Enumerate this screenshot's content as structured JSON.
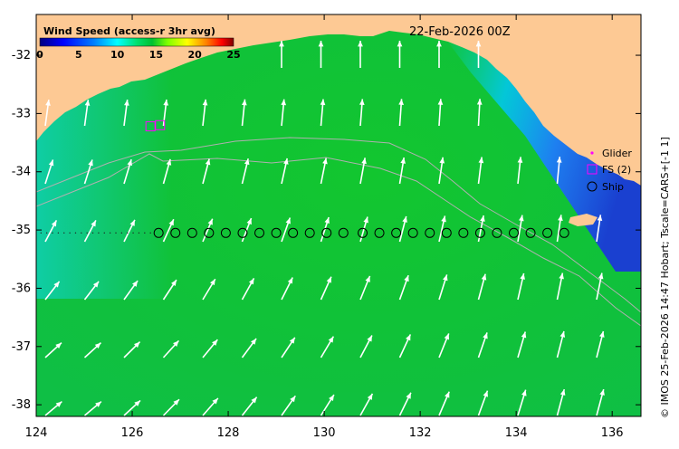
{
  "map": {
    "date_label": "22-Feb-2026 00Z",
    "credit": "© IMOS 25-Feb-2026 14:47 Hobart; Tscale=CARS+[-1 1]",
    "lon_range": [
      124,
      136.6
    ],
    "lat_range": [
      -38.2,
      -31.3
    ],
    "x_ticks": [
      124,
      126,
      128,
      130,
      132,
      134,
      136
    ],
    "y_ticks": [
      -32,
      -33,
      -34,
      -35,
      -36,
      -37,
      -38
    ],
    "colorbar": {
      "title": "Wind Speed (access-r 3hr avg)",
      "min": 0,
      "max": 25,
      "ticks": [
        "0",
        "5",
        "10",
        "15",
        "20",
        "25"
      ],
      "colors": [
        "#000080",
        "#0000ff",
        "#0080ff",
        "#00ffff",
        "#00ff80",
        "#00cc33",
        "#80ff00",
        "#ffff00",
        "#ff8000",
        "#ff0000",
        "#800000"
      ]
    },
    "legend": [
      {
        "label": "Glider",
        "symbol": "dot",
        "color": "#ff00ff"
      },
      {
        "label": "FS (2)",
        "symbol": "square",
        "color": "#ff00ff"
      },
      {
        "label": "Ship",
        "symbol": "circle",
        "color": "#000000"
      }
    ],
    "land_color": "#fdc994",
    "ship_track": {
      "lat": -35.05,
      "lons": [
        126.55,
        126.9,
        127.25,
        127.6,
        127.95,
        128.3,
        128.65,
        129.0,
        129.35,
        129.7,
        130.05,
        130.4,
        130.8,
        131.15,
        131.5,
        131.85,
        132.2,
        132.55,
        132.9,
        133.25,
        133.6,
        133.95,
        134.3,
        134.65,
        135.0
      ]
    },
    "fs_points": [
      {
        "lon": 126.38,
        "lat": -33.22
      },
      {
        "lon": 126.58,
        "lat": -33.2
      }
    ]
  }
}
